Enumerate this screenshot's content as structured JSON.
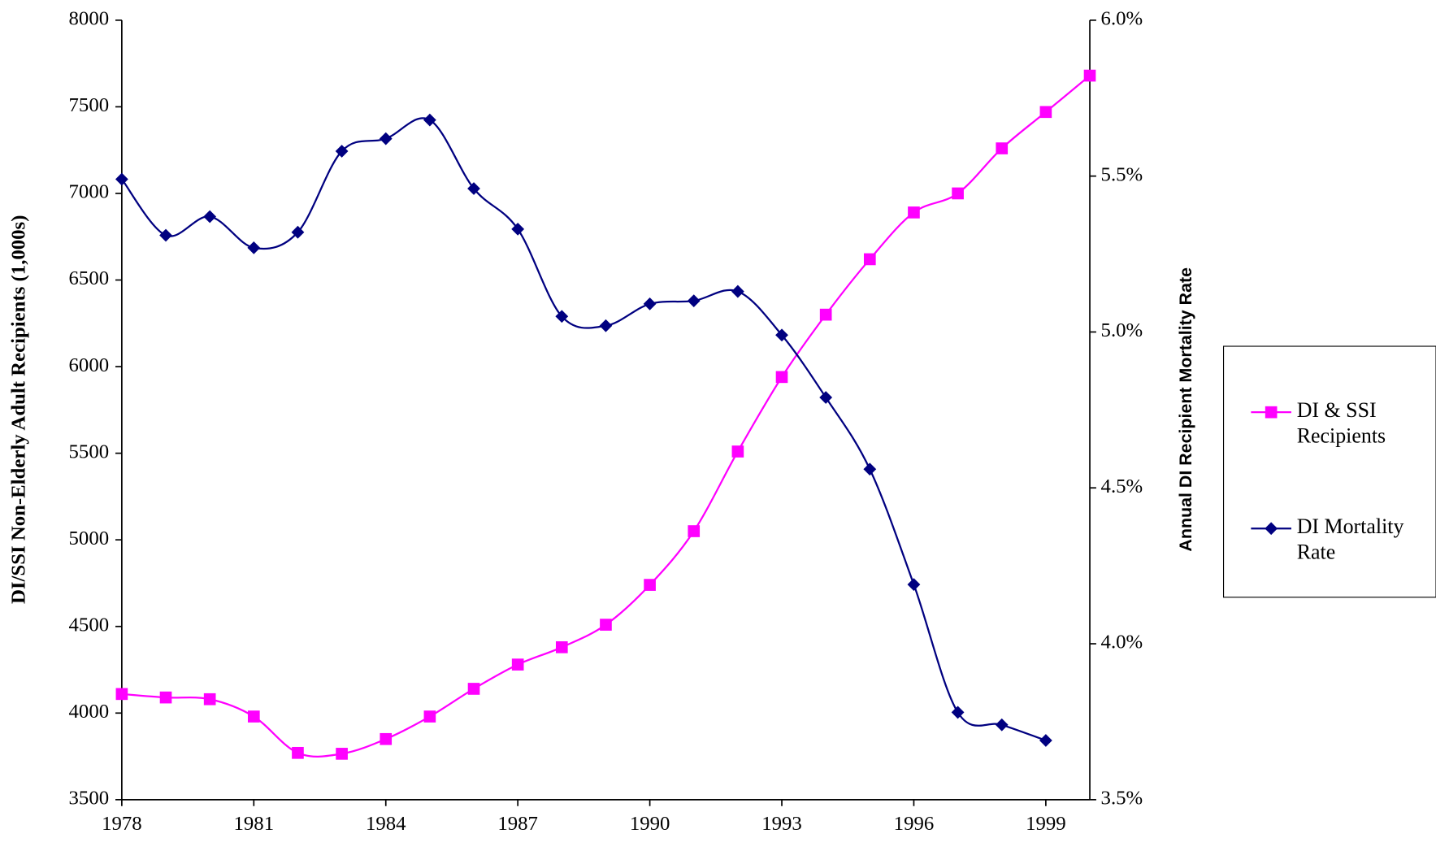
{
  "chart_data": {
    "type": "line",
    "x": [
      1978,
      1979,
      1980,
      1981,
      1982,
      1983,
      1984,
      1985,
      1986,
      1987,
      1988,
      1989,
      1990,
      1991,
      1992,
      1993,
      1994,
      1995,
      1996,
      1997,
      1998,
      1999,
      2000
    ],
    "series": [
      {
        "name": "DI & SSI Recipients",
        "color": "#ff00ff",
        "marker": "square",
        "values": [
          4110,
          4090,
          4080,
          3980,
          3770,
          3765,
          3850,
          3980,
          4140,
          4280,
          4380,
          4510,
          4740,
          5050,
          5510,
          5940,
          6300,
          6620,
          6890,
          7000,
          7260,
          7470,
          7680
        ]
      },
      {
        "name": "DI Mortality Rate",
        "color": "#000080",
        "marker": "diamond",
        "axis": "y2",
        "values": [
          5.49,
          5.31,
          5.37,
          5.27,
          5.32,
          5.58,
          5.62,
          5.68,
          5.46,
          5.33,
          5.05,
          5.02,
          5.09,
          5.1,
          5.13,
          4.99,
          4.79,
          4.56,
          4.19,
          3.78,
          3.74,
          3.69,
          null
        ]
      }
    ],
    "y_label": "DI/SSI Non-Elderly Adult Recipients (1,000s)",
    "y2_label": "Annual DI Recipient Mortality Rate",
    "xlim": [
      1978,
      2000
    ],
    "xticks": [
      1978,
      1981,
      1984,
      1987,
      1990,
      1993,
      1996,
      1999
    ],
    "ylim": [
      3500,
      8000
    ],
    "yticks": [
      3500,
      4000,
      4500,
      5000,
      5500,
      6000,
      6500,
      7000,
      7500,
      8000
    ],
    "y2lim": [
      3.5,
      6.0
    ],
    "y2ticks": [
      {
        "value": 3.5,
        "label": "3.5%"
      },
      {
        "value": 4.0,
        "label": "4.0%"
      },
      {
        "value": 4.5,
        "label": "4.5%"
      },
      {
        "value": 5.0,
        "label": "5.0%"
      },
      {
        "value": 5.5,
        "label": "5.5%"
      },
      {
        "value": 6.0,
        "label": "6.0%"
      }
    ],
    "smooth": true,
    "legend": "right"
  }
}
